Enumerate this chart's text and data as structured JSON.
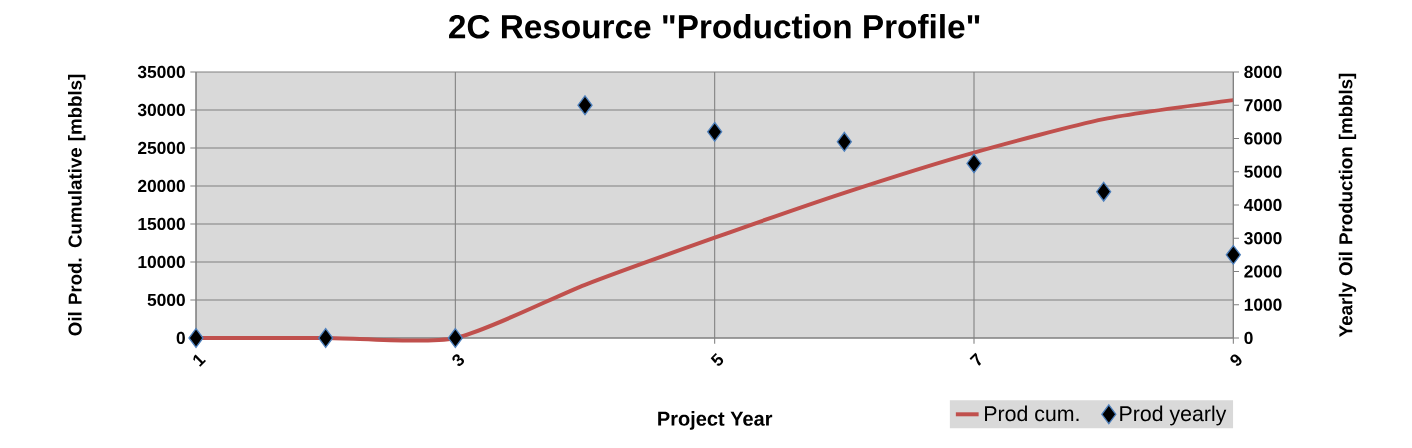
{
  "chart_data": {
    "type": "line",
    "title": "2C Resource \"Production Profile\"",
    "xlabel": "Project Year",
    "ylabel": "Oil Prod. Cumulative [mbbls]",
    "y2label": "Yearly Oil Production [mbbls]",
    "x": [
      1,
      2,
      3,
      4,
      5,
      6,
      7,
      8,
      9
    ],
    "xlim": [
      1,
      9
    ],
    "xticks": [
      1,
      3,
      5,
      7,
      9
    ],
    "ylim": [
      0,
      35000
    ],
    "yticks": [
      0,
      5000,
      10000,
      15000,
      20000,
      25000,
      30000,
      35000
    ],
    "y2lim": [
      0,
      8000
    ],
    "y2ticks": [
      0,
      1000,
      2000,
      3000,
      4000,
      5000,
      6000,
      7000,
      8000
    ],
    "grid": true,
    "legend": "bottom right",
    "series": [
      {
        "name": "Prod cum.",
        "color": "#c0504d",
        "values": [
          0,
          0,
          0,
          7000,
          13200,
          19100,
          24400,
          28800,
          31300
        ]
      },
      {
        "name": "Prod yearly",
        "type": "scatter",
        "axis": "y2",
        "marker": "diamond",
        "color": "#000000",
        "values": [
          0,
          0,
          0,
          7000,
          6200,
          5900,
          5250,
          4400,
          2500
        ]
      }
    ]
  }
}
